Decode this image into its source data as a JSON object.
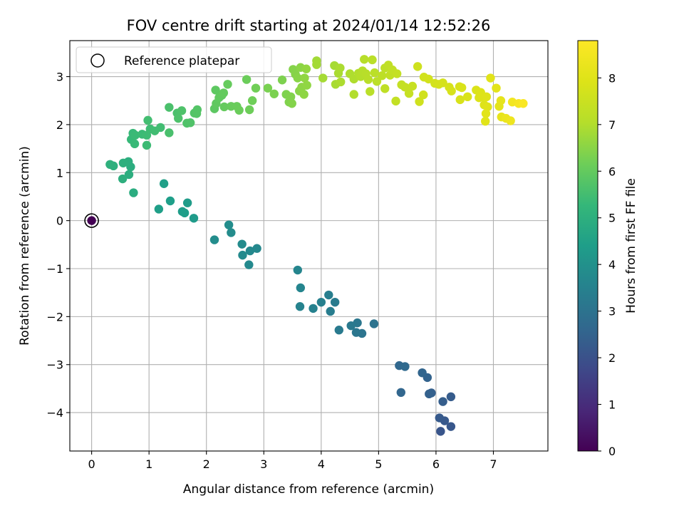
{
  "chart_data": {
    "type": "scatter",
    "title": "FOV centre drift starting at 2024/01/14 12:52:26",
    "xlabel": "Angular distance from reference (arcmin)",
    "ylabel": "Rotation from reference (arcmin)",
    "xlim": [
      -0.38,
      7.95
    ],
    "ylim": [
      -4.8,
      3.75
    ],
    "xticks": [
      0,
      1,
      2,
      3,
      4,
      5,
      6,
      7
    ],
    "yticks": [
      -4,
      -3,
      -2,
      -1,
      0,
      1,
      2,
      3
    ],
    "grid": true,
    "legend": {
      "placement": "top-left",
      "entries": [
        "Reference platepar"
      ]
    },
    "colorbar": {
      "label": "Hours from first FF file",
      "range": [
        0,
        8.8
      ],
      "ticks": [
        0,
        1,
        2,
        3,
        4,
        5,
        6,
        7,
        8
      ],
      "colormap": "viridis"
    },
    "reference_point": [
      0,
      0
    ],
    "series": [
      {
        "points": [
          [
            0.0,
            0.0,
            0.0
          ],
          [
            6.08,
            -4.39,
            2.1
          ],
          [
            6.26,
            -4.29,
            2.15
          ],
          [
            6.15,
            -4.17,
            2.2
          ],
          [
            6.06,
            -4.11,
            2.25
          ],
          [
            6.26,
            -3.67,
            2.3
          ],
          [
            6.12,
            -3.77,
            2.35
          ],
          [
            5.92,
            -3.59,
            2.4
          ],
          [
            5.88,
            -3.61,
            2.45
          ],
          [
            5.85,
            -3.27,
            2.5
          ],
          [
            5.76,
            -3.17,
            2.55
          ],
          [
            5.39,
            -3.58,
            2.6
          ],
          [
            5.36,
            -3.02,
            2.65
          ],
          [
            5.46,
            -3.04,
            2.7
          ],
          [
            4.92,
            -2.15,
            3.0
          ],
          [
            4.71,
            -2.35,
            3.05
          ],
          [
            4.61,
            -2.33,
            3.1
          ],
          [
            4.63,
            -2.13,
            3.15
          ],
          [
            4.52,
            -2.19,
            3.2
          ],
          [
            4.31,
            -2.28,
            3.25
          ],
          [
            4.24,
            -1.7,
            3.3
          ],
          [
            4.16,
            -1.89,
            3.35
          ],
          [
            4.13,
            -1.55,
            3.4
          ],
          [
            4.0,
            -1.7,
            3.45
          ],
          [
            3.86,
            -1.83,
            3.5
          ],
          [
            3.63,
            -1.79,
            3.55
          ],
          [
            3.64,
            -1.4,
            3.6
          ],
          [
            3.59,
            -1.03,
            3.62
          ],
          [
            2.88,
            -0.58,
            3.7
          ],
          [
            2.76,
            -0.63,
            3.72
          ],
          [
            2.74,
            -0.92,
            3.75
          ],
          [
            2.63,
            -0.72,
            3.78
          ],
          [
            2.62,
            -0.49,
            3.8
          ],
          [
            2.43,
            -0.25,
            3.83
          ],
          [
            2.39,
            -0.09,
            3.85
          ],
          [
            2.14,
            -0.4,
            3.88
          ],
          [
            1.78,
            0.05,
            4.3
          ],
          [
            1.67,
            0.37,
            4.33
          ],
          [
            1.58,
            0.19,
            4.36
          ],
          [
            1.62,
            0.16,
            4.39
          ],
          [
            1.37,
            0.41,
            4.42
          ],
          [
            1.17,
            0.24,
            4.45
          ],
          [
            1.26,
            0.77,
            4.48
          ],
          [
            0.73,
            0.58,
            4.9
          ],
          [
            0.68,
            1.12,
            4.92
          ],
          [
            0.65,
            0.96,
            4.94
          ],
          [
            0.64,
            1.23,
            4.96
          ],
          [
            0.54,
            0.87,
            4.98
          ],
          [
            0.55,
            1.2,
            5.0
          ],
          [
            0.38,
            1.14,
            5.02
          ],
          [
            0.32,
            1.17,
            5.04
          ],
          [
            0.69,
            1.69,
            5.3
          ],
          [
            0.72,
            1.82,
            5.32
          ],
          [
            0.75,
            1.6,
            5.34
          ],
          [
            0.76,
            1.78,
            5.36
          ],
          [
            0.88,
            1.8,
            5.38
          ],
          [
            0.96,
            1.57,
            5.4
          ],
          [
            0.96,
            1.78,
            5.42
          ],
          [
            1.02,
            1.91,
            5.44
          ],
          [
            1.1,
            1.87,
            5.46
          ],
          [
            1.2,
            1.94,
            5.48
          ],
          [
            0.98,
            2.09,
            5.5
          ],
          [
            1.35,
            1.83,
            5.6
          ],
          [
            1.35,
            2.36,
            5.62
          ],
          [
            1.49,
            2.24,
            5.64
          ],
          [
            1.51,
            2.13,
            5.66
          ],
          [
            1.57,
            2.29,
            5.68
          ],
          [
            1.66,
            2.03,
            5.7
          ],
          [
            1.72,
            2.04,
            5.72
          ],
          [
            1.79,
            2.24,
            5.74
          ],
          [
            1.84,
            2.31,
            5.76
          ],
          [
            1.83,
            2.23,
            5.78
          ],
          [
            2.14,
            2.33,
            5.9
          ],
          [
            2.16,
            2.72,
            5.92
          ],
          [
            2.17,
            2.44,
            5.94
          ],
          [
            2.22,
            2.56,
            5.96
          ],
          [
            2.27,
            2.61,
            5.98
          ],
          [
            2.3,
            2.66,
            6.0
          ],
          [
            2.31,
            2.37,
            6.02
          ],
          [
            2.37,
            2.84,
            6.04
          ],
          [
            2.43,
            2.38,
            6.06
          ],
          [
            2.53,
            2.38,
            6.08
          ],
          [
            2.57,
            2.3,
            6.1
          ],
          [
            2.7,
            2.94,
            6.12
          ],
          [
            2.75,
            2.31,
            6.14
          ],
          [
            2.8,
            2.5,
            6.16
          ],
          [
            2.86,
            2.76,
            6.18
          ],
          [
            3.07,
            2.76,
            6.3
          ],
          [
            3.18,
            2.64,
            6.32
          ],
          [
            3.32,
            2.93,
            6.34
          ],
          [
            3.39,
            2.63,
            6.36
          ],
          [
            3.44,
            2.47,
            6.38
          ],
          [
            3.47,
            2.58,
            6.4
          ],
          [
            3.49,
            2.44,
            6.42
          ],
          [
            3.51,
            3.15,
            6.44
          ],
          [
            3.55,
            3.05,
            6.46
          ],
          [
            3.59,
            2.97,
            6.48
          ],
          [
            3.62,
            2.7,
            6.5
          ],
          [
            3.64,
            3.19,
            6.52
          ],
          [
            3.66,
            2.78,
            6.54
          ],
          [
            3.7,
            2.63,
            6.56
          ],
          [
            3.75,
            2.82,
            6.58
          ],
          [
            3.71,
            2.97,
            6.6
          ],
          [
            3.74,
            3.16,
            6.62
          ],
          [
            3.92,
            3.33,
            6.8
          ],
          [
            3.92,
            3.25,
            6.82
          ],
          [
            4.03,
            2.97,
            6.84
          ],
          [
            4.23,
            3.23,
            6.86
          ],
          [
            4.25,
            2.84,
            6.88
          ],
          [
            4.3,
            3.07,
            6.9
          ],
          [
            4.33,
            3.18,
            6.92
          ],
          [
            4.34,
            2.89,
            6.94
          ],
          [
            4.5,
            3.06,
            6.96
          ],
          [
            4.57,
            2.95,
            6.98
          ],
          [
            4.57,
            2.63,
            7.0
          ],
          [
            4.65,
            3.07,
            7.02
          ],
          [
            4.69,
            3.0,
            7.04
          ],
          [
            4.72,
            3.12,
            7.06
          ],
          [
            4.75,
            3.36,
            7.08
          ],
          [
            4.78,
            3.06,
            7.1
          ],
          [
            4.82,
            2.94,
            7.12
          ],
          [
            4.85,
            2.69,
            7.14
          ],
          [
            4.89,
            3.35,
            7.16
          ],
          [
            4.93,
            3.08,
            7.18
          ],
          [
            4.97,
            2.9,
            7.2
          ],
          [
            5.06,
            3.02,
            7.22
          ],
          [
            5.11,
            3.18,
            7.24
          ],
          [
            5.11,
            2.75,
            7.26
          ],
          [
            5.17,
            3.24,
            7.28
          ],
          [
            5.2,
            3.03,
            7.3
          ],
          [
            5.24,
            3.14,
            7.32
          ],
          [
            5.3,
            2.49,
            7.34
          ],
          [
            5.32,
            3.06,
            7.36
          ],
          [
            5.4,
            2.83,
            7.38
          ],
          [
            5.46,
            2.78,
            7.4
          ],
          [
            5.53,
            2.65,
            7.42
          ],
          [
            5.59,
            2.8,
            7.44
          ],
          [
            5.68,
            3.21,
            7.6
          ],
          [
            5.71,
            2.48,
            7.62
          ],
          [
            5.78,
            2.62,
            7.64
          ],
          [
            5.79,
            2.99,
            7.66
          ],
          [
            5.87,
            2.95,
            7.68
          ],
          [
            5.98,
            2.86,
            7.7
          ],
          [
            6.05,
            2.84,
            7.72
          ],
          [
            6.12,
            2.87,
            7.74
          ],
          [
            6.23,
            2.78,
            7.76
          ],
          [
            6.27,
            2.7,
            7.78
          ],
          [
            6.41,
            2.79,
            7.8
          ],
          [
            6.42,
            2.52,
            7.82
          ],
          [
            6.45,
            2.77,
            7.84
          ],
          [
            6.55,
            2.58,
            7.86
          ],
          [
            6.7,
            2.72,
            7.88
          ],
          [
            6.75,
            2.56,
            7.9
          ],
          [
            6.78,
            2.67,
            7.92
          ],
          [
            6.8,
            2.58,
            7.94
          ],
          [
            6.84,
            2.41,
            7.96
          ],
          [
            6.88,
            2.58,
            7.98
          ],
          [
            6.9,
            2.37,
            8.0
          ],
          [
            6.95,
            2.97,
            8.02
          ],
          [
            6.86,
            2.07,
            8.04
          ],
          [
            6.87,
            2.23,
            8.06
          ],
          [
            7.05,
            2.76,
            8.08
          ],
          [
            7.1,
            2.38,
            8.12
          ],
          [
            7.13,
            2.5,
            8.16
          ],
          [
            7.14,
            2.16,
            8.2
          ],
          [
            7.22,
            2.13,
            8.3
          ],
          [
            7.3,
            2.08,
            8.4
          ],
          [
            7.33,
            2.47,
            8.5
          ],
          [
            7.44,
            2.44,
            8.6
          ],
          [
            7.52,
            2.44,
            8.7
          ]
        ]
      }
    ]
  }
}
